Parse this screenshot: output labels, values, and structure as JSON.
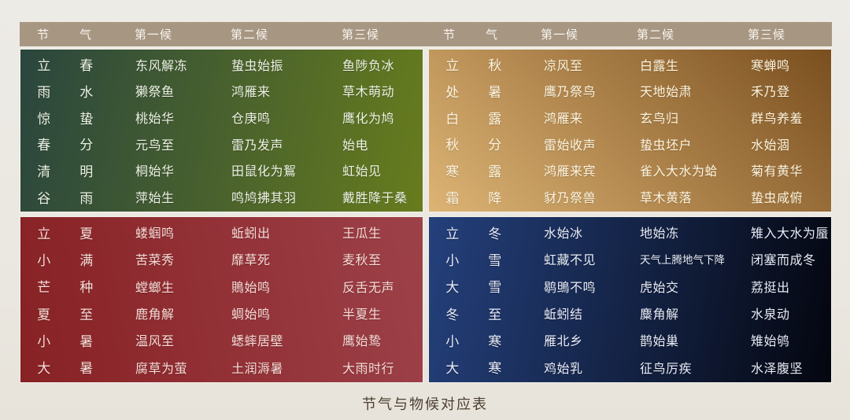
{
  "caption": "节气与物候对应表",
  "columns": {
    "jie": "节",
    "qi": "气",
    "p1": "第一候",
    "p2": "第二候",
    "p3": "第三候"
  },
  "colors": {
    "page_background": "#ece9e3",
    "header_background": "#a79682",
    "header_text": "#f7f4ed",
    "caption_text": "#4c3e31"
  },
  "quadrants": [
    {
      "id": "spring",
      "gradient": {
        "angle": "100deg",
        "from": "#2a463e",
        "to": "#677c1d"
      },
      "rows": [
        {
          "jie": "立",
          "qi": "春",
          "p1": "东风解冻",
          "p2": "蛰虫始振",
          "p3": "鱼陟负冰"
        },
        {
          "jie": "雨",
          "qi": "水",
          "p1": "獭祭鱼",
          "p2": "鸿雁来",
          "p3": "草木萌动"
        },
        {
          "jie": "惊",
          "qi": "蛰",
          "p1": "桃始华",
          "p2": "仓庚鸣",
          "p3": "鹰化为鸠"
        },
        {
          "jie": "春",
          "qi": "分",
          "p1": "元鸟至",
          "p2": "雷乃发声",
          "p3": "始电"
        },
        {
          "jie": "清",
          "qi": "明",
          "p1": "桐始华",
          "p2": "田鼠化为鴽",
          "p3": "虹始见"
        },
        {
          "jie": "谷",
          "qi": "雨",
          "p1": "萍始生",
          "p2": "鸣鸠拂其羽",
          "p3": "戴胜降于桑"
        }
      ]
    },
    {
      "id": "autumn",
      "gradient": {
        "angle": "45deg",
        "from": "#ddb475",
        "to": "#7a4f1f"
      },
      "rows": [
        {
          "jie": "立",
          "qi": "秋",
          "p1": "凉风至",
          "p2": "白露生",
          "p3": "寒蝉鸣"
        },
        {
          "jie": "处",
          "qi": "暑",
          "p1": "鹰乃祭鸟",
          "p2": "天地始肃",
          "p3": "禾乃登"
        },
        {
          "jie": "白",
          "qi": "露",
          "p1": "鸿雁来",
          "p2": "玄鸟归",
          "p3": "群鸟养羞"
        },
        {
          "jie": "秋",
          "qi": "分",
          "p1": "雷始收声",
          "p2": "蛰虫坯户",
          "p3": "水始涸"
        },
        {
          "jie": "寒",
          "qi": "露",
          "p1": "鸿雁来宾",
          "p2": "雀入大水为蛤",
          "p3": "菊有黄华"
        },
        {
          "jie": "霜",
          "qi": "降",
          "p1": "豺乃祭兽",
          "p2": "草木黄落",
          "p3": "蛰虫咸俯"
        }
      ]
    },
    {
      "id": "summer",
      "gradient": {
        "angle": "80deg",
        "from": "#872124",
        "to": "#9d4149"
      },
      "rows": [
        {
          "jie": "立",
          "qi": "夏",
          "p1": "蝼蝈鸣",
          "p2": "蚯蚓出",
          "p3": "王瓜生"
        },
        {
          "jie": "小",
          "qi": "满",
          "p1": "苦菜秀",
          "p2": "靡草死",
          "p3": "麦秋至"
        },
        {
          "jie": "芒",
          "qi": "种",
          "p1": "螳螂生",
          "p2": "鵙始鸣",
          "p3": "反舌无声"
        },
        {
          "jie": "夏",
          "qi": "至",
          "p1": "鹿角解",
          "p2": "蜩始鸣",
          "p3": "半夏生"
        },
        {
          "jie": "小",
          "qi": "暑",
          "p1": "温风至",
          "p2": "蟋蟀居壁",
          "p3": "鹰始鸷"
        },
        {
          "jie": "大",
          "qi": "暑",
          "p1": "腐草为萤",
          "p2": "土润溽暑",
          "p3": "大雨时行"
        }
      ]
    },
    {
      "id": "winter",
      "gradient": {
        "angle": "100deg",
        "from": "#24407c",
        "to": "#04060f"
      },
      "rows": [
        {
          "jie": "立",
          "qi": "冬",
          "p1": "水始冰",
          "p2": "地始冻",
          "p3": "雉入大水为蜃"
        },
        {
          "jie": "小",
          "qi": "雪",
          "p1": "虹藏不见",
          "p2": "天气上腾地气下降",
          "p3": "闭塞而成冬"
        },
        {
          "jie": "大",
          "qi": "雪",
          "p1": "鹖鴠不鸣",
          "p2": "虎始交",
          "p3": "荔挺出"
        },
        {
          "jie": "冬",
          "qi": "至",
          "p1": "蚯蚓结",
          "p2": "麋角解",
          "p3": "水泉动"
        },
        {
          "jie": "小",
          "qi": "寒",
          "p1": "雁北乡",
          "p2": "鹊始巢",
          "p3": "雉始鸲"
        },
        {
          "jie": "大",
          "qi": "寒",
          "p1": "鸡始乳",
          "p2": "征鸟厉疾",
          "p3": "水泽腹坚"
        }
      ]
    }
  ]
}
